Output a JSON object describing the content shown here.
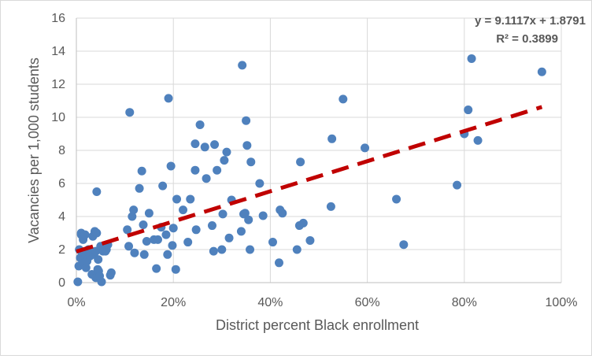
{
  "chart_data": {
    "type": "scatter",
    "xlabel": "District percent Black enrollment",
    "ylabel": "Vacancies per 1,000 students",
    "xlim": [
      0,
      1
    ],
    "ylim": [
      0,
      16
    ],
    "x_ticks": [
      0,
      0.2,
      0.4,
      0.6,
      0.8,
      1.0
    ],
    "x_tick_labels": [
      "0%",
      "20%",
      "40%",
      "60%",
      "80%",
      "100%"
    ],
    "y_ticks": [
      0,
      2,
      4,
      6,
      8,
      10,
      12,
      14,
      16
    ],
    "y_tick_labels": [
      "0",
      "2",
      "4",
      "6",
      "8",
      "10",
      "12",
      "14",
      "16"
    ],
    "grid": true,
    "marker_color": "#4f81bd",
    "trendline": {
      "slope": 9.1117,
      "intercept": 1.8791,
      "color": "#c00000",
      "style": "dashed",
      "equation_label": "y = 9.1117x + 1.8791",
      "r2_label": "R² = 0.3899"
    },
    "points": [
      [
        0.003,
        0.05
      ],
      [
        0.005,
        1.0
      ],
      [
        0.006,
        2.0
      ],
      [
        0.008,
        1.5
      ],
      [
        0.01,
        2.9
      ],
      [
        0.01,
        3.0
      ],
      [
        0.012,
        1.8
      ],
      [
        0.014,
        2.6
      ],
      [
        0.016,
        1.2
      ],
      [
        0.018,
        2.9
      ],
      [
        0.02,
        0.9
      ],
      [
        0.02,
        1.6
      ],
      [
        0.022,
        1.3
      ],
      [
        0.025,
        2.0
      ],
      [
        0.028,
        1.6
      ],
      [
        0.03,
        1.8
      ],
      [
        0.032,
        0.5
      ],
      [
        0.034,
        2.8
      ],
      [
        0.036,
        1.7
      ],
      [
        0.038,
        3.1
      ],
      [
        0.04,
        0.3
      ],
      [
        0.04,
        1.9
      ],
      [
        0.042,
        5.5
      ],
      [
        0.042,
        3.0
      ],
      [
        0.044,
        0.8
      ],
      [
        0.045,
        1.4
      ],
      [
        0.046,
        0.7
      ],
      [
        0.048,
        0.4
      ],
      [
        0.05,
        2.2
      ],
      [
        0.052,
        0.05
      ],
      [
        0.055,
        1.9
      ],
      [
        0.057,
        2.1
      ],
      [
        0.06,
        1.9
      ],
      [
        0.062,
        2.0
      ],
      [
        0.065,
        2.3
      ],
      [
        0.07,
        0.45
      ],
      [
        0.072,
        0.6
      ],
      [
        0.105,
        3.2
      ],
      [
        0.108,
        2.2
      ],
      [
        0.11,
        10.3
      ],
      [
        0.115,
        4.0
      ],
      [
        0.118,
        4.4
      ],
      [
        0.12,
        1.8
      ],
      [
        0.13,
        5.7
      ],
      [
        0.135,
        6.75
      ],
      [
        0.138,
        3.5
      ],
      [
        0.14,
        1.7
      ],
      [
        0.145,
        2.5
      ],
      [
        0.15,
        4.2
      ],
      [
        0.16,
        2.6
      ],
      [
        0.165,
        0.85
      ],
      [
        0.168,
        2.6
      ],
      [
        0.175,
        3.35
      ],
      [
        0.178,
        5.85
      ],
      [
        0.185,
        2.9
      ],
      [
        0.188,
        1.7
      ],
      [
        0.19,
        11.15
      ],
      [
        0.195,
        7.05
      ],
      [
        0.198,
        2.25
      ],
      [
        0.2,
        3.3
      ],
      [
        0.205,
        0.8
      ],
      [
        0.207,
        5.05
      ],
      [
        0.22,
        4.4
      ],
      [
        0.23,
        2.45
      ],
      [
        0.235,
        5.05
      ],
      [
        0.245,
        6.8
      ],
      [
        0.245,
        8.4
      ],
      [
        0.247,
        3.2
      ],
      [
        0.255,
        9.55
      ],
      [
        0.265,
        8.2
      ],
      [
        0.268,
        6.3
      ],
      [
        0.28,
        3.45
      ],
      [
        0.283,
        1.9
      ],
      [
        0.285,
        8.35
      ],
      [
        0.29,
        6.8
      ],
      [
        0.3,
        2.0
      ],
      [
        0.302,
        4.15
      ],
      [
        0.305,
        7.4
      ],
      [
        0.31,
        7.9
      ],
      [
        0.315,
        2.7
      ],
      [
        0.32,
        5.0
      ],
      [
        0.34,
        3.1
      ],
      [
        0.342,
        13.15
      ],
      [
        0.345,
        4.15
      ],
      [
        0.348,
        4.2
      ],
      [
        0.35,
        9.8
      ],
      [
        0.352,
        8.3
      ],
      [
        0.355,
        3.8
      ],
      [
        0.358,
        2.0
      ],
      [
        0.36,
        7.3
      ],
      [
        0.378,
        6.0
      ],
      [
        0.385,
        4.05
      ],
      [
        0.405,
        2.45
      ],
      [
        0.418,
        1.2
      ],
      [
        0.42,
        4.4
      ],
      [
        0.425,
        4.2
      ],
      [
        0.455,
        2.0
      ],
      [
        0.46,
        3.45
      ],
      [
        0.462,
        7.3
      ],
      [
        0.468,
        3.6
      ],
      [
        0.482,
        2.55
      ],
      [
        0.525,
        4.6
      ],
      [
        0.527,
        8.7
      ],
      [
        0.55,
        11.1
      ],
      [
        0.595,
        8.15
      ],
      [
        0.66,
        5.05
      ],
      [
        0.675,
        2.3
      ],
      [
        0.785,
        5.9
      ],
      [
        0.8,
        9.0
      ],
      [
        0.808,
        10.45
      ],
      [
        0.815,
        13.55
      ],
      [
        0.828,
        8.6
      ],
      [
        0.96,
        12.75
      ]
    ]
  }
}
